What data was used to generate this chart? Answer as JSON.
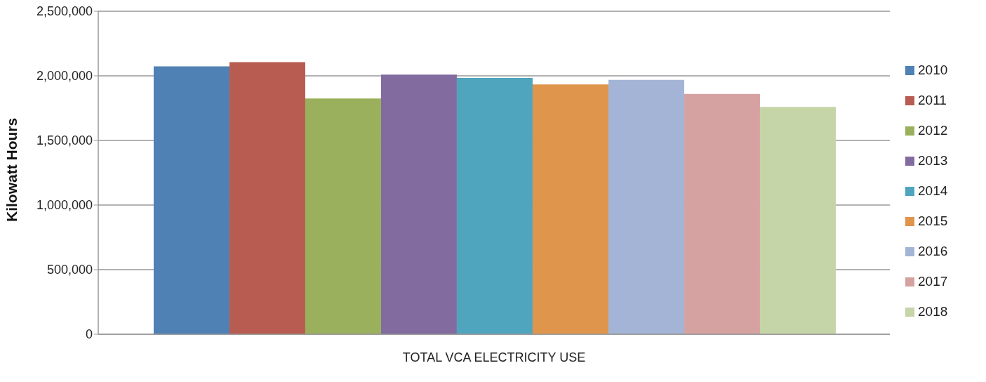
{
  "chart_data": {
    "type": "bar",
    "categories": [
      "TOTAL VCA ELECTRICITY USE"
    ],
    "ylabel": "Kilowatt Hours",
    "series": [
      {
        "name": "2010",
        "color": "#4f81b4",
        "values": [
          2073000
        ]
      },
      {
        "name": "2011",
        "color": "#b85b50",
        "values": [
          2106000
        ]
      },
      {
        "name": "2012",
        "color": "#9ab05c",
        "values": [
          1825000
        ]
      },
      {
        "name": "2013",
        "color": "#826b9f",
        "values": [
          2010000
        ]
      },
      {
        "name": "2014",
        "color": "#4fa5bd",
        "values": [
          1984000
        ]
      },
      {
        "name": "2015",
        "color": "#df954c",
        "values": [
          1934000
        ]
      },
      {
        "name": "2016",
        "color": "#a3b4d6",
        "values": [
          1969000
        ]
      },
      {
        "name": "2017",
        "color": "#d6a2a1",
        "values": [
          1860000
        ]
      },
      {
        "name": "2018",
        "color": "#c5d5a8",
        "values": [
          1760000
        ]
      }
    ],
    "ylim": [
      0,
      2500000
    ],
    "yticks": [
      {
        "value": 0,
        "label": "0"
      },
      {
        "value": 500000,
        "label": "500,000"
      },
      {
        "value": 1000000,
        "label": "1,000,000"
      },
      {
        "value": 1500000,
        "label": "1,500,000"
      },
      {
        "value": 2000000,
        "label": "2,000,000"
      },
      {
        "value": 2500000,
        "label": "2,500,000"
      }
    ],
    "grid": "y",
    "legend": "right"
  }
}
